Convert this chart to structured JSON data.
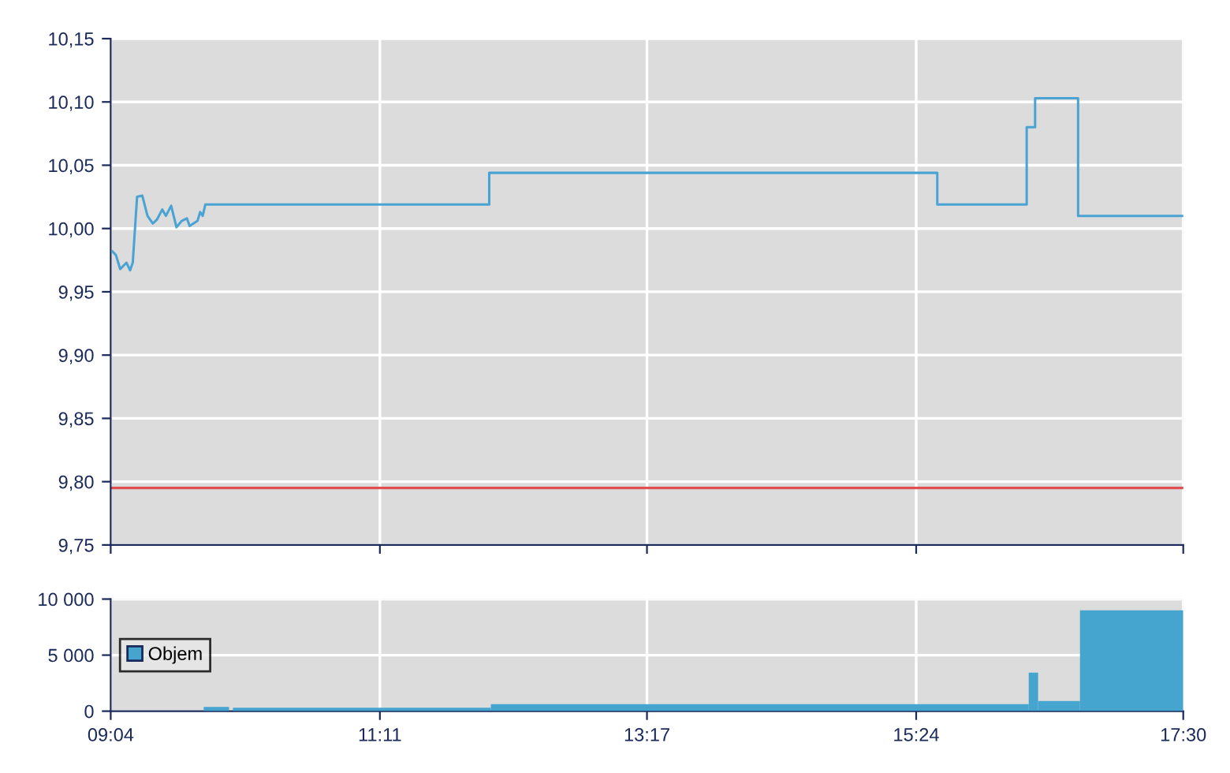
{
  "chart_data": [
    {
      "type": "line",
      "x": [
        9.079,
        9.108,
        9.141,
        9.191,
        9.219,
        9.24,
        9.274,
        9.315,
        9.356,
        9.398,
        9.43,
        9.472,
        9.501,
        9.542,
        9.584,
        9.625,
        9.666,
        9.687,
        9.749,
        9.77,
        9.79,
        9.811,
        12.043,
        12.043,
        15.566,
        15.566,
        16.269,
        16.269,
        16.335,
        16.335,
        16.673,
        16.673,
        17.5
      ],
      "series": [
        {
          "color": "#4aa3d3",
          "values": [
            9.982,
            9.979,
            9.968,
            9.973,
            9.967,
            9.973,
            10.025,
            10.026,
            10.01,
            10.004,
            10.007,
            10.015,
            10.01,
            10.018,
            10.001,
            10.006,
            10.008,
            10.002,
            10.006,
            10.013,
            10.01,
            10.019,
            10.019,
            10.044,
            10.044,
            10.019,
            10.019,
            10.08,
            10.08,
            10.103,
            10.103,
            10.01,
            10.01
          ]
        }
      ],
      "ref_lines": [
        {
          "axis": "y",
          "value": 9.795,
          "color": "#e05050"
        }
      ],
      "xlim": [
        9.0667,
        17.5
      ],
      "xticks": [
        {
          "value": 9.0667,
          "label": null
        },
        {
          "value": 11.1833,
          "label": null
        },
        {
          "value": 13.2833,
          "label": null
        },
        {
          "value": 15.4,
          "label": null
        },
        {
          "value": 17.5,
          "label": null
        }
      ],
      "ylim": [
        9.75,
        10.15
      ],
      "yticks": [
        {
          "value": 9.75,
          "label": "9,75"
        },
        {
          "value": 9.8,
          "label": "9,80"
        },
        {
          "value": 9.85,
          "label": "9,85"
        },
        {
          "value": 9.9,
          "label": "9,90"
        },
        {
          "value": 9.95,
          "label": "9,95"
        },
        {
          "value": 10.0,
          "label": "10,00"
        },
        {
          "value": 10.05,
          "label": "10,05"
        },
        {
          "value": 10.1,
          "label": "10,10"
        },
        {
          "value": 10.15,
          "label": "10,15"
        }
      ],
      "tick_labels": "y",
      "grid": true,
      "legend": false
    },
    {
      "type": "histogram",
      "bins": [
        9.798,
        9.997,
        10.028,
        12.056,
        16.285,
        16.359,
        16.688,
        17.5
      ],
      "series": [
        {
          "name": "Objem",
          "color": "#46a5cf",
          "values": [
            370,
            0,
            300,
            630,
            3430,
            900,
            9000
          ]
        }
      ],
      "xlim": [
        9.0667,
        17.5
      ],
      "xticks": [
        {
          "value": 9.0667,
          "label": "09:04"
        },
        {
          "value": 11.1833,
          "label": "11:11"
        },
        {
          "value": 13.2833,
          "label": "13:17"
        },
        {
          "value": 15.4,
          "label": "15:24"
        },
        {
          "value": 17.5,
          "label": "17:30"
        }
      ],
      "ylim": [
        0,
        10000
      ],
      "yticks": [
        {
          "value": 0,
          "label": "0"
        },
        {
          "value": 5000,
          "label": "5 000"
        },
        {
          "value": 10000,
          "label": "10 000"
        }
      ],
      "grid": true,
      "legend": "center left"
    }
  ]
}
